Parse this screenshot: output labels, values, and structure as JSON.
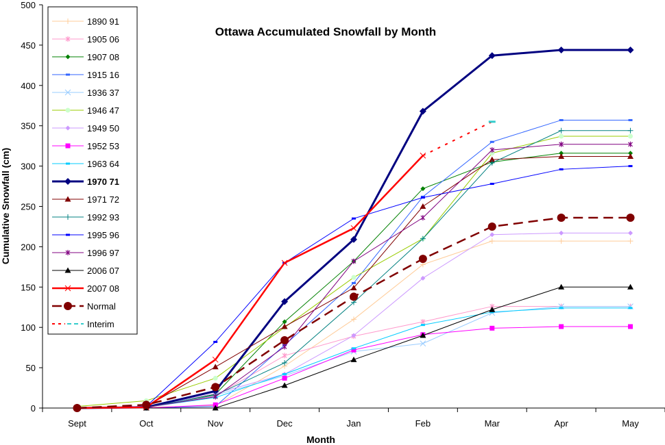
{
  "chart_data": {
    "type": "line",
    "title": "Ottawa Accumulated Snowfall by Month",
    "xlabel": "Month",
    "ylabel": "Cumulative Snowfall (cm)",
    "categories": [
      "Sept",
      "Oct",
      "Nov",
      "Dec",
      "Jan",
      "Feb",
      "Mar",
      "Apr",
      "May"
    ],
    "ylim": [
      0,
      500
    ],
    "yticks": [
      0,
      50,
      100,
      150,
      200,
      250,
      300,
      350,
      400,
      450,
      500
    ],
    "grid": false,
    "legend": "top-left",
    "series": [
      {
        "name": "1890 91",
        "color": "#FFCC99",
        "marker": "plus",
        "values": [
          0,
          1,
          3,
          52,
          110,
          178,
          207,
          207,
          207
        ]
      },
      {
        "name": "1905 06",
        "color": "#FF99CC",
        "marker": "star",
        "values": [
          0,
          1,
          15,
          65,
          89,
          107,
          126,
          126,
          126
        ]
      },
      {
        "name": "1907 08",
        "color": "#008000",
        "marker": "diamond",
        "values": [
          0,
          2,
          17,
          107,
          182,
          272,
          305,
          316,
          316
        ]
      },
      {
        "name": "1915 16",
        "color": "#3366FF",
        "marker": "dash",
        "values": [
          0,
          0,
          2,
          78,
          155,
          262,
          330,
          357,
          357
        ]
      },
      {
        "name": "1936 37",
        "color": "#99CCFF",
        "marker": "x",
        "values": [
          0,
          1,
          16,
          40,
          70,
          80,
          118,
          126,
          126
        ]
      },
      {
        "name": "1946 47",
        "color": "#99CC00",
        "marker": "circle-light",
        "values": [
          2,
          9,
          37,
          100,
          162,
          210,
          316,
          337,
          337
        ]
      },
      {
        "name": "1949 50",
        "color": "#CC99FF",
        "marker": "diamond",
        "values": [
          0,
          1,
          18,
          42,
          90,
          161,
          215,
          217,
          217
        ]
      },
      {
        "name": "1952 53",
        "color": "#FF00FF",
        "marker": "square",
        "values": [
          0,
          0,
          4,
          37,
          72,
          91,
          99,
          101,
          101
        ]
      },
      {
        "name": "1963 64",
        "color": "#00CCFF",
        "marker": "dash",
        "values": [
          0,
          1,
          13,
          42,
          74,
          103,
          119,
          124,
          124
        ]
      },
      {
        "name": "1970 71",
        "color": "#000080",
        "marker": "diamond-big",
        "bold": true,
        "values": [
          0,
          1,
          21,
          132,
          209,
          368,
          437,
          444,
          444
        ]
      },
      {
        "name": "1971 72",
        "color": "#800000",
        "marker": "triangle",
        "values": [
          0,
          2,
          51,
          101,
          149,
          250,
          308,
          312,
          312
        ]
      },
      {
        "name": "1992 93",
        "color": "#008080",
        "marker": "plus",
        "values": [
          0,
          1,
          16,
          56,
          131,
          210,
          304,
          344,
          344
        ]
      },
      {
        "name": "1995 96",
        "color": "#0000FF",
        "marker": "dash",
        "values": [
          0,
          2,
          82,
          180,
          235,
          261,
          278,
          296,
          300
        ]
      },
      {
        "name": "1996 97",
        "color": "#800080",
        "marker": "star",
        "values": [
          0,
          1,
          14,
          76,
          182,
          236,
          320,
          327,
          327
        ]
      },
      {
        "name": "2006 07",
        "color": "#000000",
        "marker": "triangle",
        "values": [
          0,
          0,
          0,
          28,
          60,
          90,
          122,
          150,
          150
        ]
      },
      {
        "name": "2007 08",
        "color": "#FF0000",
        "marker": "x",
        "thick": true,
        "values": [
          0,
          1,
          60,
          180,
          223,
          313,
          null,
          null,
          null
        ]
      },
      {
        "name": "Normal",
        "color": "#800000",
        "marker": "circle",
        "dashed": true,
        "values": [
          0,
          4,
          26,
          84,
          138,
          185,
          225,
          236,
          236
        ]
      },
      {
        "name": "Interim",
        "color": "#FF0000",
        "marker": "dash-cyan",
        "dotted": true,
        "values": [
          null,
          null,
          null,
          null,
          null,
          313,
          355,
          null,
          null
        ]
      }
    ]
  }
}
